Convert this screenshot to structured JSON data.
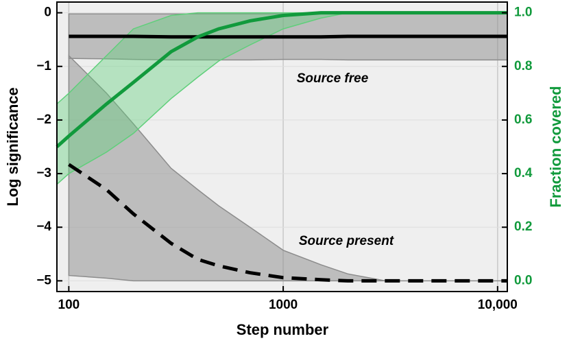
{
  "chart_data": {
    "type": "line",
    "xlabel": "Step number",
    "ylabel": "Log significance",
    "y2label": "Fraction covered",
    "y2_color": "#119a3c",
    "xscale": "log",
    "grid": true,
    "xlim": [
      88,
      11100
    ],
    "ylim": [
      -5.2,
      0.2
    ],
    "y2lim": [
      -0.04,
      1.04
    ],
    "xticks": [
      100,
      1000,
      {
        "value": 10000,
        "label": "10,000"
      }
    ],
    "yticks": [
      0,
      {
        "value": -1,
        "label": "−1"
      },
      {
        "value": -2,
        "label": "−2"
      },
      {
        "value": -3,
        "label": "−3"
      },
      {
        "value": -4,
        "label": "−4"
      },
      {
        "value": -5,
        "label": "−5"
      }
    ],
    "y2ticks": [
      {
        "value": 0,
        "label": "0.0"
      },
      0.2,
      0.4,
      0.6,
      0.8,
      {
        "value": 1,
        "label": "1.0"
      }
    ],
    "annotations": [
      "Source free",
      "Source present"
    ],
    "x": [
      88,
      100,
      150,
      200,
      300,
      400,
      500,
      700,
      1000,
      1500,
      2000,
      3000,
      5000,
      11100
    ],
    "series": [
      {
        "color": "#000000",
        "band_color": "#8c8c8c",
        "line_style": "solid",
        "values": [
          null,
          -0.44,
          -0.44,
          -0.44,
          -0.45,
          -0.45,
          -0.45,
          -0.45,
          -0.45,
          -0.45,
          -0.44,
          -0.44,
          -0.44,
          -0.44
        ],
        "upper": [
          null,
          -0.02,
          -0.02,
          -0.02,
          -0.02,
          -0.02,
          -0.02,
          -0.02,
          -0.02,
          -0.02,
          -0.02,
          -0.02,
          -0.02,
          -0.02
        ],
        "lower": [
          null,
          -0.85,
          -0.86,
          -0.87,
          -0.88,
          -0.88,
          -0.88,
          -0.88,
          -0.87,
          -0.87,
          -0.88,
          -0.88,
          -0.88,
          -0.88
        ]
      },
      {
        "color": "#000000",
        "band_color": "#8c8c8c",
        "line_style": "dashed",
        "values": [
          null,
          -2.83,
          -3.3,
          -3.75,
          -4.3,
          -4.6,
          -4.72,
          -4.85,
          -4.94,
          -4.98,
          -5.0,
          -5.0,
          -5.0,
          -5.0
        ],
        "upper": [
          null,
          -0.8,
          -1.5,
          -2.07,
          -2.9,
          -3.3,
          -3.6,
          -4.0,
          -4.43,
          -4.7,
          -4.87,
          -5.0,
          -5.0,
          -5.0
        ],
        "lower": [
          null,
          -4.9,
          -4.95,
          -5.0,
          -5.0,
          -5.0,
          -5.0,
          -5.0,
          -5.0,
          -5.0,
          -5.0,
          -5.0,
          -5.0,
          -5.0
        ]
      },
      {
        "color": "#119a3c",
        "band_color": "#5fcf7a",
        "line_style": "solid",
        "axis": "y2",
        "values": [
          0.5,
          0.54,
          0.66,
          0.74,
          0.855,
          0.91,
          0.94,
          0.97,
          0.99,
          1.0,
          1.0,
          1.0,
          1.0,
          1.0
        ],
        "upper": [
          0.66,
          0.7,
          0.84,
          0.94,
          0.99,
          1.0,
          1.0,
          1.0,
          1.0,
          1.0,
          1.0,
          1.0,
          1.0,
          1.0
        ],
        "lower": [
          0.36,
          0.4,
          0.48,
          0.55,
          0.68,
          0.76,
          0.82,
          0.88,
          0.94,
          0.98,
          1.0,
          1.0,
          1.0,
          1.0
        ]
      }
    ]
  }
}
